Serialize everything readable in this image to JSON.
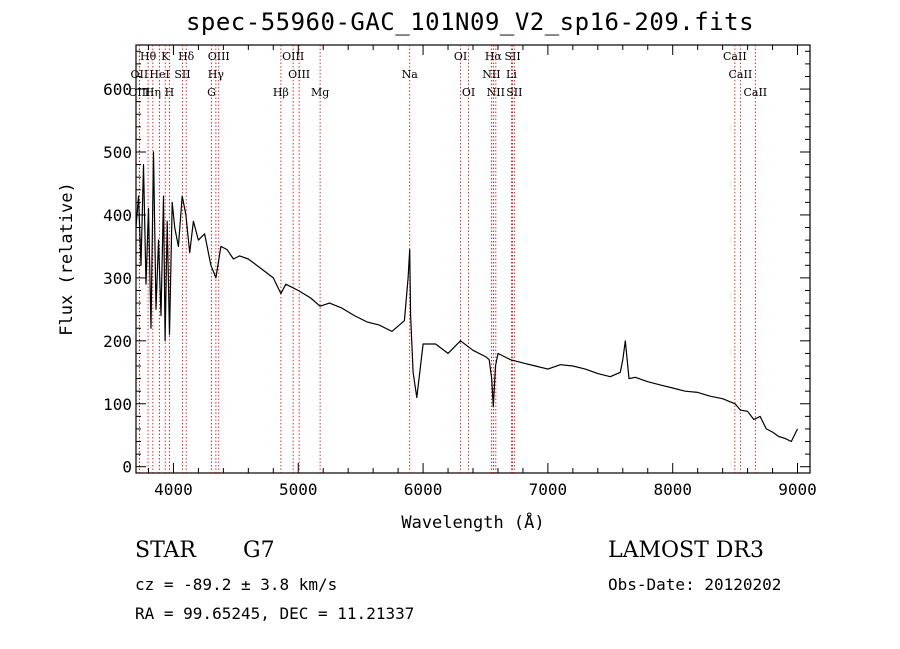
{
  "title": "spec-55960-GAC_101N09_V2_sp16-209.fits",
  "info": {
    "class": "STAR",
    "subclass": "G7",
    "survey": "LAMOST DR3",
    "cz": "cz = -89.2 ± 3.8 km/s",
    "obs_date": "Obs-Date: 20120202",
    "radec": "RA =  99.65245, DEC =  11.21337"
  },
  "chart_data": {
    "type": "line",
    "title": "spec-55960-GAC_101N09_V2_sp16-209.fits",
    "xlabel": "Wavelength (Å)",
    "ylabel": "Flux (relative)",
    "xlim": [
      3700,
      9100
    ],
    "ylim": [
      -10,
      670
    ],
    "xticks": [
      4000,
      5000,
      6000,
      7000,
      8000,
      9000
    ],
    "yticks": [
      0,
      100,
      200,
      300,
      400,
      500,
      600
    ],
    "line_color": "#000000",
    "marker_color": "#cc0000",
    "series": [
      {
        "name": "flux",
        "x": [
          3700,
          3720,
          3740,
          3760,
          3780,
          3800,
          3820,
          3840,
          3860,
          3880,
          3900,
          3920,
          3933,
          3950,
          3968,
          3990,
          4010,
          4040,
          4070,
          4100,
          4130,
          4160,
          4200,
          4250,
          4300,
          4340,
          4380,
          4430,
          4480,
          4530,
          4600,
          4700,
          4800,
          4861,
          4900,
          5000,
          5100,
          5175,
          5250,
          5350,
          5450,
          5550,
          5650,
          5750,
          5850,
          5880,
          5893,
          5900,
          5920,
          5950,
          6000,
          6100,
          6200,
          6300,
          6400,
          6500,
          6530,
          6550,
          6563,
          6580,
          6600,
          6700,
          6800,
          6900,
          7000,
          7100,
          7200,
          7300,
          7400,
          7500,
          7580,
          7600,
          7620,
          7650,
          7700,
          7800,
          7900,
          8000,
          8100,
          8200,
          8300,
          8400,
          8500,
          8542,
          8600,
          8650,
          8700,
          8750,
          8800,
          8850,
          8900,
          8950,
          9000
        ],
        "y": [
          380,
          430,
          320,
          480,
          290,
          410,
          220,
          500,
          250,
          360,
          240,
          430,
          200,
          390,
          210,
          420,
          380,
          350,
          430,
          400,
          340,
          390,
          360,
          370,
          320,
          300,
          350,
          345,
          330,
          335,
          330,
          315,
          300,
          275,
          290,
          280,
          268,
          255,
          260,
          252,
          240,
          230,
          225,
          215,
          232,
          300,
          345,
          240,
          150,
          110,
          195,
          195,
          180,
          200,
          185,
          175,
          170,
          140,
          95,
          160,
          180,
          170,
          165,
          160,
          155,
          162,
          160,
          155,
          148,
          143,
          150,
          170,
          200,
          140,
          142,
          135,
          130,
          125,
          120,
          118,
          112,
          108,
          100,
          90,
          88,
          75,
          80,
          60,
          55,
          48,
          45,
          40,
          60
        ]
      }
    ],
    "lines": [
      {
        "name": "Hθ",
        "wl": 3797,
        "row": 0
      },
      {
        "name": "K",
        "wl": 3934,
        "row": 0
      },
      {
        "name": "Hδ",
        "wl": 4102,
        "row": 0
      },
      {
        "name": "OIII",
        "wl": 4363,
        "row": 0
      },
      {
        "name": "OIII",
        "wl": 4959,
        "row": 0
      },
      {
        "name": "OI",
        "wl": 6300,
        "row": 0
      },
      {
        "name": "Hα",
        "wl": 6563,
        "row": 0
      },
      {
        "name": "SII",
        "wl": 6717,
        "row": 0
      },
      {
        "name": "CaII",
        "wl": 8498,
        "row": 0
      },
      {
        "name": "OII",
        "wl": 3727,
        "row": 1
      },
      {
        "name": "HeI",
        "wl": 3889,
        "row": 1
      },
      {
        "name": "SII",
        "wl": 4072,
        "row": 1
      },
      {
        "name": "Hγ",
        "wl": 4340,
        "row": 1
      },
      {
        "name": "OIII",
        "wl": 5007,
        "row": 1
      },
      {
        "name": "Na",
        "wl": 5893,
        "row": 1
      },
      {
        "name": "NII",
        "wl": 6548,
        "row": 1
      },
      {
        "name": "Li",
        "wl": 6708,
        "row": 1
      },
      {
        "name": "CaII",
        "wl": 8542,
        "row": 1
      },
      {
        "name": "OIII",
        "wl": 3727,
        "row": 2
      },
      {
        "name": "Hη",
        "wl": 3835,
        "row": 2
      },
      {
        "name": "H",
        "wl": 3968,
        "row": 2
      },
      {
        "name": "G",
        "wl": 4305,
        "row": 2
      },
      {
        "name": "Hβ",
        "wl": 4861,
        "row": 2
      },
      {
        "name": "Mg",
        "wl": 5175,
        "row": 2
      },
      {
        "name": "OI",
        "wl": 6364,
        "row": 2
      },
      {
        "name": "NII",
        "wl": 6583,
        "row": 2
      },
      {
        "name": "SII",
        "wl": 6731,
        "row": 2
      },
      {
        "name": "CaII",
        "wl": 8662,
        "row": 2
      }
    ]
  }
}
